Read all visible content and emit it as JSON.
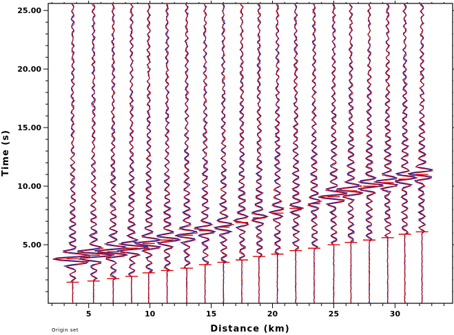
{
  "footnote": "Origin set",
  "chart_data": {
    "type": "line",
    "title": "",
    "xlabel": "Distance (km)",
    "ylabel": "Time (s)",
    "xlim": [
      1.7,
      34.7
    ],
    "ylim": [
      0,
      25.6
    ],
    "x_ticks": [
      5,
      10,
      15,
      20,
      25,
      30
    ],
    "y_ticks": [
      5,
      10,
      15,
      20,
      25
    ],
    "y_tick_labels": [
      "5.00",
      "10.00",
      "15.00",
      "20.00",
      "25.00"
    ],
    "x_tick_labels": [
      "5",
      "10",
      "15",
      "20",
      "25",
      "30"
    ],
    "colors": {
      "observed": "#1a1a9a",
      "synthetic": "#cc0000",
      "pick": "#dd0000",
      "axis": "#000000"
    },
    "traces": [
      {
        "distance": 3.7,
        "p_pick": 1.8,
        "s_pick": 3.8,
        "amp": 1.9
      },
      {
        "distance": 5.4,
        "p_pick": 1.9,
        "s_pick": 4.1,
        "amp": 1.8
      },
      {
        "distance": 7.0,
        "p_pick": 2.1,
        "s_pick": 4.4,
        "amp": 1.6
      },
      {
        "distance": 8.5,
        "p_pick": 2.3,
        "s_pick": 4.7,
        "amp": 1.4
      },
      {
        "distance": 9.9,
        "p_pick": 2.6,
        "s_pick": 5.1,
        "amp": 1.2
      },
      {
        "distance": 11.4,
        "p_pick": 2.8,
        "s_pick": 5.4,
        "amp": 1.0
      },
      {
        "distance": 13.0,
        "p_pick": 3.0,
        "s_pick": 5.8,
        "amp": 0.9
      },
      {
        "distance": 14.5,
        "p_pick": 3.3,
        "s_pick": 6.2,
        "amp": 0.8
      },
      {
        "distance": 16.0,
        "p_pick": 3.5,
        "s_pick": 6.5,
        "amp": 0.7
      },
      {
        "distance": 17.5,
        "p_pick": 3.7,
        "s_pick": 6.9,
        "amp": 0.5
      },
      {
        "distance": 18.9,
        "p_pick": 4.0,
        "s_pick": 7.3,
        "amp": 0.5
      },
      {
        "distance": 20.4,
        "p_pick": 4.2,
        "s_pick": 7.7,
        "amp": 0.4
      },
      {
        "distance": 21.9,
        "p_pick": 4.5,
        "s_pick": 8.1,
        "amp": 0.3
      },
      {
        "distance": 23.4,
        "p_pick": 4.7,
        "s_pick": 8.5,
        "amp": 0.3
      },
      {
        "distance": 25.0,
        "p_pick": 5.0,
        "s_pick": 9.1,
        "amp": 1.3
      },
      {
        "distance": 26.4,
        "p_pick": 5.2,
        "s_pick": 9.6,
        "amp": 1.2
      },
      {
        "distance": 27.9,
        "p_pick": 5.4,
        "s_pick": 10.0,
        "amp": 1.1
      },
      {
        "distance": 29.4,
        "p_pick": 5.6,
        "s_pick": 10.3,
        "amp": 1.0
      },
      {
        "distance": 30.8,
        "p_pick": 5.9,
        "s_pick": 10.6,
        "amp": 0.9
      },
      {
        "distance": 32.2,
        "p_pick": 6.1,
        "s_pick": 11.0,
        "amp": 1.1
      }
    ]
  }
}
